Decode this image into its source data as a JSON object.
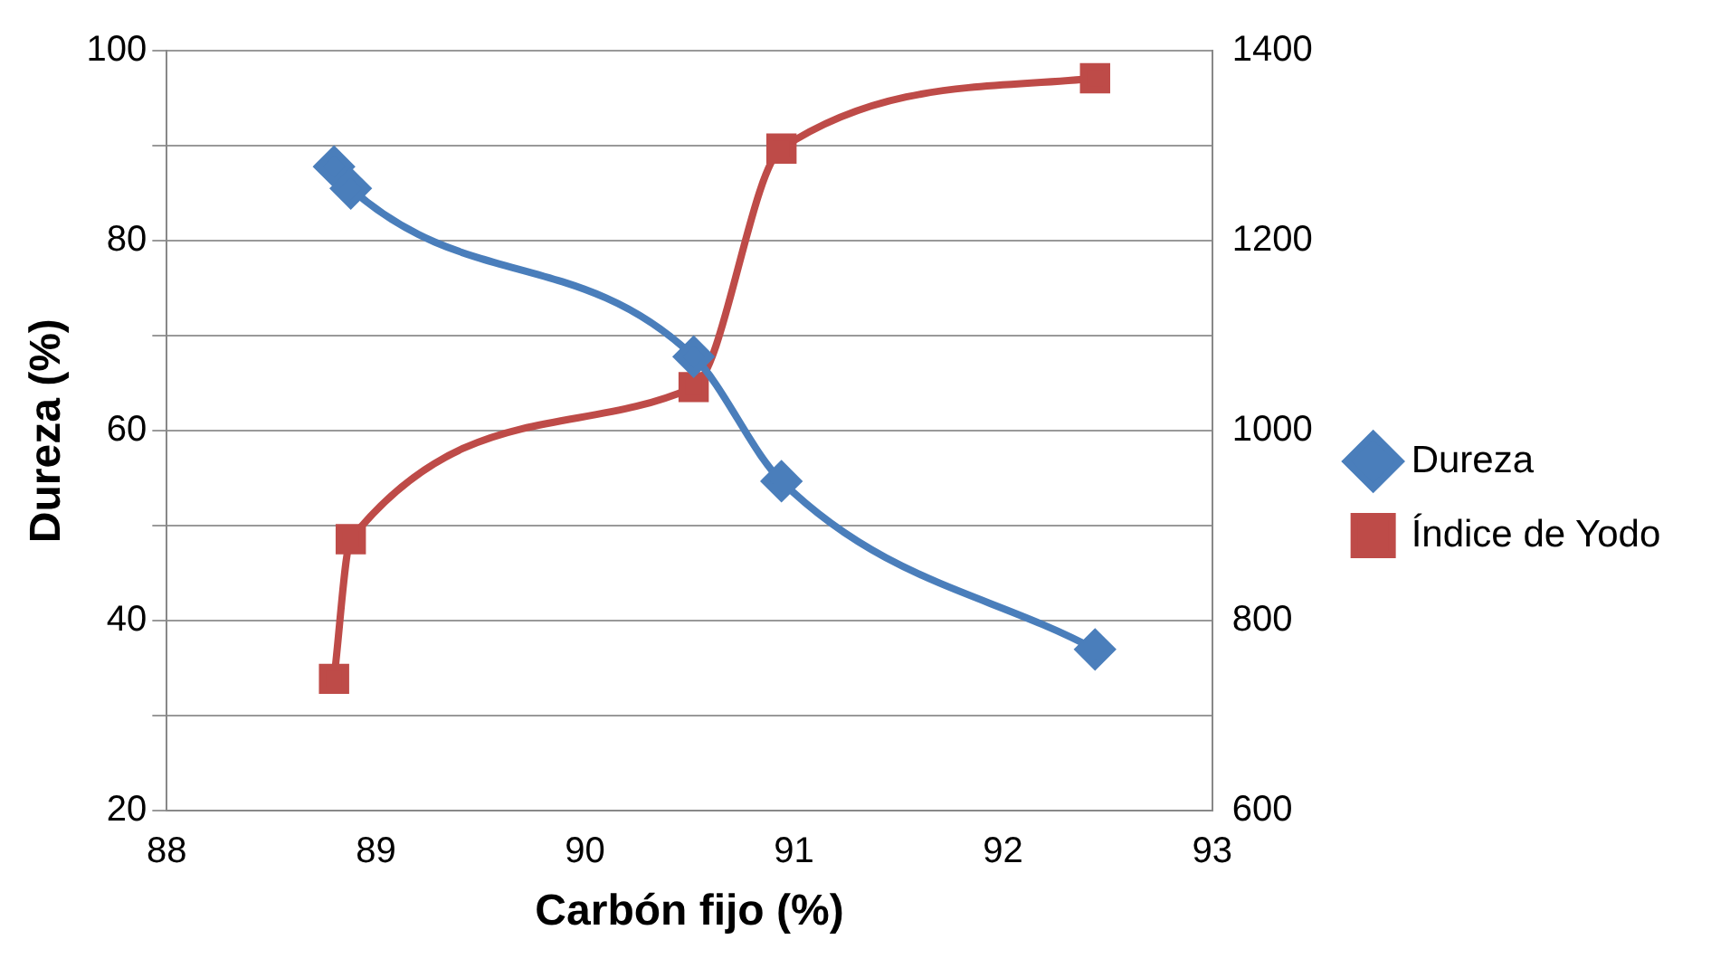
{
  "chart_data": {
    "type": "line",
    "xlabel": "Carbón fijo (%)",
    "ylabel": "Dureza (%)",
    "x": [
      88.8,
      88.88,
      90.52,
      90.94,
      92.44
    ],
    "series": [
      {
        "name": "Dureza",
        "color": "#4a7ebb",
        "marker": "diamond",
        "values": [
          87.8,
          85.5,
          67.8,
          54.7,
          37
        ]
      },
      {
        "name": "Índice de Yodo",
        "color": "#be4b48",
        "marker": "square",
        "axis": "y2",
        "values": [
          739,
          886,
          1046,
          1297,
          1371
        ]
      }
    ],
    "xlim": [
      88,
      93
    ],
    "xticks": [
      88,
      89,
      90,
      91,
      92,
      93
    ],
    "ylim": [
      20,
      100
    ],
    "yticks": [
      20,
      {
        "value": 30,
        "label": null
      },
      40,
      {
        "value": 50,
        "label": null
      },
      60,
      {
        "value": 70,
        "label": null
      },
      80,
      {
        "value": 90,
        "label": null
      },
      100
    ],
    "y2lim": [
      600,
      1400
    ],
    "y2ticks": [
      600,
      800,
      1000,
      1200,
      1400
    ],
    "grid": "y",
    "legend": "right"
  }
}
